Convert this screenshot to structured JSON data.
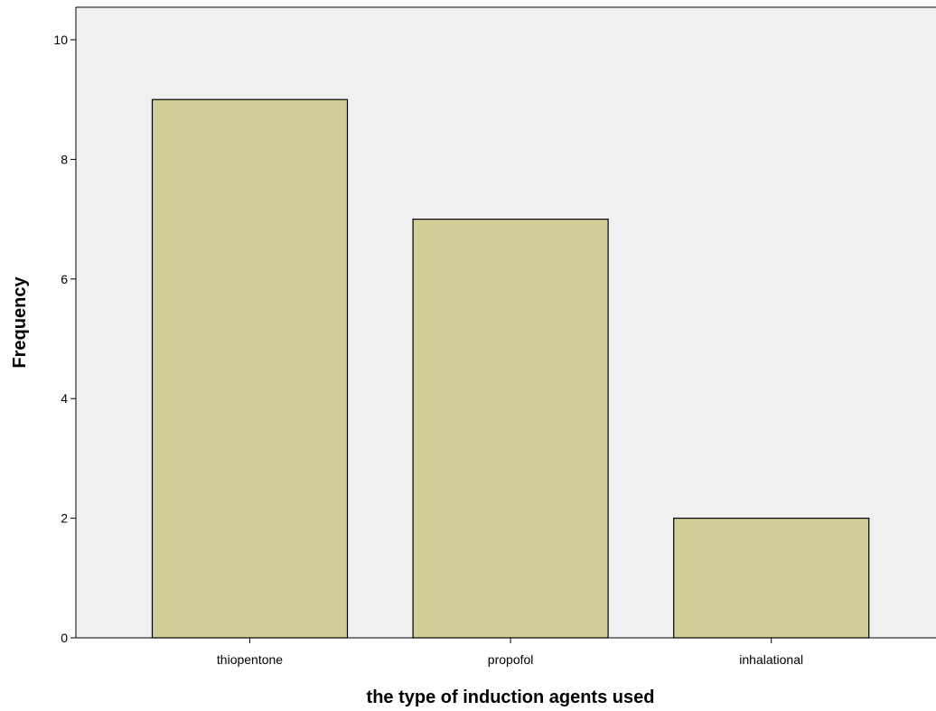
{
  "chart_data": {
    "type": "bar",
    "title": "",
    "xlabel": "the type of induction agents used",
    "ylabel": "Frequency",
    "categories": [
      "thiopentone",
      "propofol",
      "inhalational"
    ],
    "values": [
      9,
      7,
      2
    ],
    "ylim": [
      0,
      10.5
    ],
    "yticks": [
      0,
      2,
      4,
      6,
      8,
      10
    ],
    "grid": false,
    "legend": "none",
    "colors": {
      "bar_fill": "#d3ce97",
      "bar_stroke": "#000000",
      "plot_background": "#f0f0f0"
    }
  }
}
